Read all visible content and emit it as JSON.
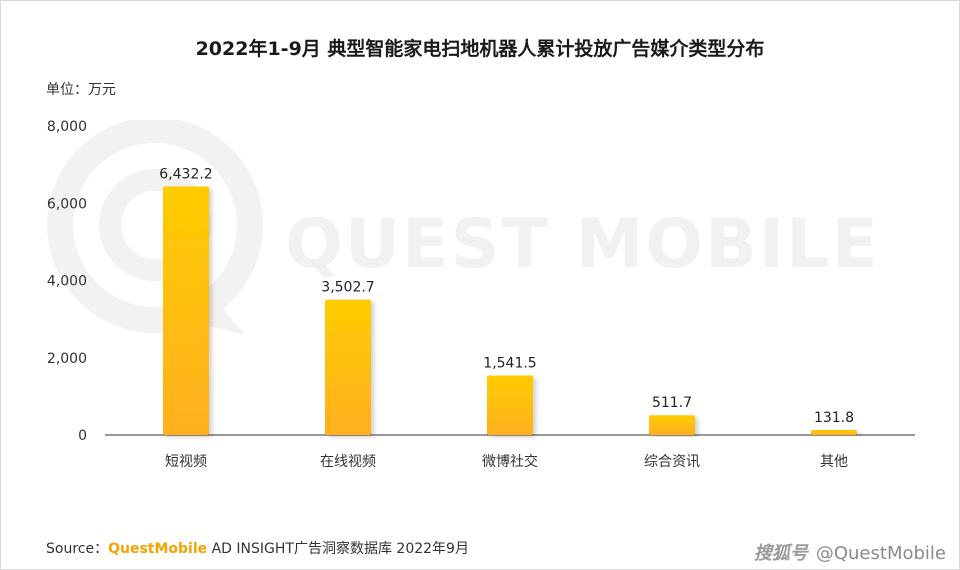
{
  "title": "2022年1-9月 典型智能家电扫地机器人累计投放广告媒介类型分布",
  "unit_label": "单位：万元",
  "watermark": "QUEST MOBILE",
  "source": {
    "prefix": "Source：",
    "brand": "QuestMobile",
    "text": " AD INSIGHT广告洞察数据库 2022年9月"
  },
  "credit": {
    "platform": "搜狐号",
    "handle": "@QuestMobile"
  },
  "colors": {
    "bar_top": "#ffcc00",
    "bar_bottom": "#ffb020",
    "axis": "#333333",
    "brand": "#f5a300"
  },
  "chart_data": {
    "type": "bar",
    "title": "2022年1-9月 典型智能家电扫地机器人累计投放广告媒介类型分布",
    "xlabel": "",
    "ylabel": "单位：万元",
    "categories": [
      "短视频",
      "在线视频",
      "微博社交",
      "综合资讯",
      "其他"
    ],
    "values": [
      6432.2,
      3502.7,
      1541.5,
      511.7,
      131.8
    ],
    "value_labels": [
      "6,432.2",
      "3,502.7",
      "1,541.5",
      "511.7",
      "131.8"
    ],
    "ylim": [
      0,
      8000
    ],
    "yticks": [
      0,
      2000,
      4000,
      6000,
      8000
    ],
    "ytick_labels": [
      "0",
      "2,000",
      "4,000",
      "6,000",
      "8,000"
    ],
    "grid": false,
    "legend": "none"
  }
}
